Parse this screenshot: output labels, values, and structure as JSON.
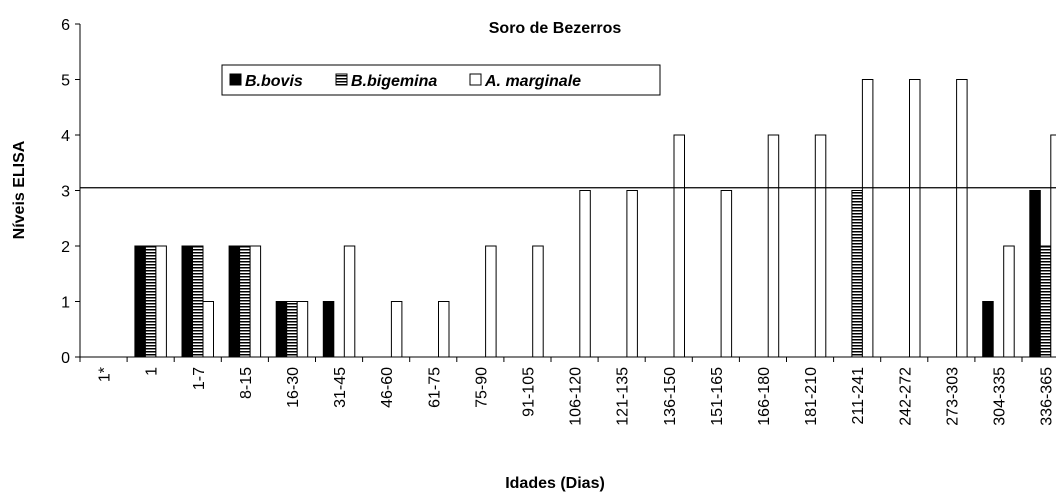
{
  "chart_data": {
    "type": "bar",
    "title": "Soro de Bezerros",
    "x_label": "Idades (Dias)",
    "y_label": "Níveis ELISA",
    "categories": [
      "1*",
      "1",
      "1-7",
      "8-15",
      "16-30",
      "31-45",
      "46-60",
      "61-75",
      "75-90",
      "91-105",
      "106-120",
      "121-135",
      "136-150",
      "151-165",
      "166-180",
      "181-210",
      "211-241",
      "242-272",
      "273-303",
      "304-335",
      "336-365"
    ],
    "series": [
      {
        "name": "B.bovis",
        "color": "#000000",
        "pattern": "solid",
        "values": [
          0,
          2,
          2,
          2,
          1,
          1,
          0,
          0,
          0,
          0,
          0,
          0,
          0,
          0,
          0,
          0,
          0,
          0,
          0,
          1,
          3
        ]
      },
      {
        "name": "B.bigemina",
        "color": "#000000",
        "pattern": "horizontal-stripes",
        "values": [
          0,
          2,
          2,
          2,
          1,
          0,
          0,
          0,
          0,
          0,
          0,
          0,
          0,
          0,
          0,
          0,
          3,
          0,
          0,
          0,
          2
        ]
      },
      {
        "name": "A. marginale",
        "color": "#ffffff",
        "pattern": "solid",
        "values": [
          0,
          2,
          1,
          2,
          1,
          2,
          1,
          1,
          2,
          2,
          3,
          3,
          4,
          3,
          4,
          4,
          5,
          5,
          5,
          2,
          4
        ]
      }
    ],
    "reference_line": 3.05,
    "ylim": [
      0,
      6
    ],
    "yticks": [
      0,
      1,
      2,
      3,
      4,
      5,
      6
    ],
    "grid": false,
    "legend": "top-left"
  }
}
